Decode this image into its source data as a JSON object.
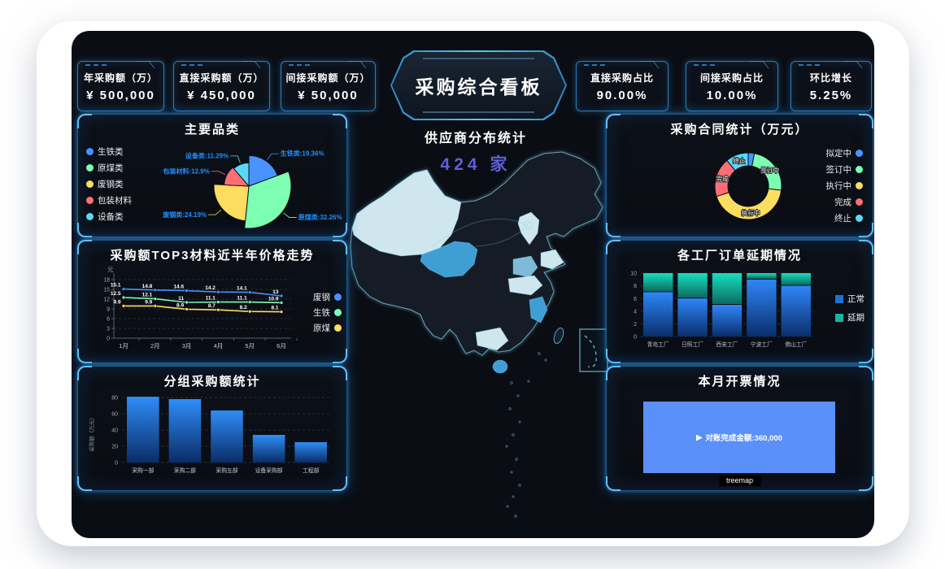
{
  "title": "采购综合看板",
  "top_cards": [
    {
      "label": "年采购额（万）",
      "value": "¥ 500,000"
    },
    {
      "label": "直接采购额（万）",
      "value": "¥ 450,000"
    },
    {
      "label": "间接采购额（万）",
      "value": "¥ 50,000"
    },
    {
      "label": "直接采购占比",
      "value": "90.00%"
    },
    {
      "label": "间接采购占比",
      "value": "10.00%"
    },
    {
      "label": "环比增长",
      "value": "5.25%"
    }
  ],
  "center": {
    "supplier_title": "供应商分布统计",
    "supplier_count": "424",
    "supplier_unit": "家"
  },
  "colors": {
    "accent_purple": "#5f5fd8",
    "panel_glow_blue": "#2482dc",
    "pie_label_blue": "#1e90ff",
    "map_light": "#cfe6ee",
    "map_mid": "#7fb9d8",
    "map_strong": "#3f9fd4",
    "treemap_blue": "#5b8ff9"
  },
  "chart_data": [
    {
      "id": "categories_pie",
      "type": "pie",
      "variant": "rose",
      "title": "主要品类",
      "legend_position": "left",
      "label_color": "#1e90ff",
      "series": [
        {
          "name": "生铁类",
          "value": 19.36,
          "color": "#4992ff"
        },
        {
          "name": "原煤类",
          "value": 32.26,
          "color": "#7cffb2"
        },
        {
          "name": "废钢类",
          "value": 24.19,
          "color": "#fddd60"
        },
        {
          "name": "包装材料",
          "value": 12.9,
          "color": "#ff6e76"
        },
        {
          "name": "设备类",
          "value": 11.29,
          "color": "#58d9f9"
        }
      ]
    },
    {
      "id": "price_trend",
      "type": "line",
      "title": "采购额TOP3材料近半年价格走势",
      "ylabel": "元",
      "ylim": [
        0,
        18
      ],
      "yticks": [
        0,
        3,
        6,
        9,
        12,
        15,
        18
      ],
      "categories": [
        "1月",
        "2月",
        "3月",
        "4月",
        "5月",
        "6月"
      ],
      "legend_position": "right",
      "series": [
        {
          "name": "废钢",
          "color": "#4992ff",
          "values": [
            15.1,
            14.8,
            14.6,
            14.2,
            14.1,
            13
          ]
        },
        {
          "name": "生铁",
          "color": "#7cffb2",
          "values": [
            12.5,
            12.1,
            11,
            11.1,
            11.1,
            10.9
          ]
        },
        {
          "name": "原煤",
          "color": "#fddd60",
          "values": [
            9.9,
            9.9,
            8.9,
            8.7,
            8.2,
            8.1
          ]
        }
      ]
    },
    {
      "id": "group_purchase",
      "type": "bar",
      "title": "分组采购额统计",
      "ylabel": "采购额（万元）",
      "ylim": [
        0,
        80
      ],
      "yticks": [
        0,
        20,
        40,
        60,
        80
      ],
      "categories": [
        "采购一部",
        "采购二部",
        "采购五部",
        "设备采购部",
        "工程部"
      ],
      "values": [
        81,
        78,
        64,
        34,
        25
      ],
      "bar_gradient": [
        "#2f8df8",
        "#0a2c66"
      ]
    },
    {
      "id": "contract_donut",
      "type": "pie",
      "variant": "donut",
      "title": "采购合同统计（万元）",
      "legend_position": "right",
      "values_note": "percent shares estimated from arc sizes; no numeric labels shown",
      "series": [
        {
          "name": "拟定中",
          "value": 3,
          "color": "#4992ff"
        },
        {
          "name": "签订中",
          "value": 24,
          "color": "#7cffb2"
        },
        {
          "name": "执行中",
          "value": 43,
          "color": "#fddd60"
        },
        {
          "name": "完成",
          "value": 19,
          "color": "#ff6e76"
        },
        {
          "name": "终止",
          "value": 11,
          "color": "#58d9f9"
        }
      ]
    },
    {
      "id": "factory_delay",
      "type": "bar",
      "variant": "stacked",
      "title": "各工厂订单延期情况",
      "ylim": [
        0,
        10
      ],
      "yticks": [
        0,
        2,
        4,
        6,
        8,
        10
      ],
      "categories": [
        "青岛工厂",
        "日照工厂",
        "西安工厂",
        "宁波工厂",
        "佛山工厂"
      ],
      "legend_position": "right",
      "series": [
        {
          "name": "正常",
          "values": [
            7,
            6,
            5,
            9,
            8
          ],
          "gradient": [
            "#2f86f8",
            "#0a2e6b"
          ],
          "legend_color": "#1f6fd4"
        },
        {
          "name": "延期",
          "values": [
            3,
            4,
            5,
            1,
            2
          ],
          "gradient": [
            "#17e0be",
            "#0c6a60"
          ],
          "legend_color": "#18b3a2"
        }
      ]
    },
    {
      "id": "invoice_treemap",
      "type": "treemap",
      "title": "本月开票情况",
      "arrow_icon": "▶",
      "blocks": [
        {
          "label": "对账完成金额:360,000",
          "color": "#5b8ff9"
        }
      ],
      "footer_label": "treemap"
    },
    {
      "id": "supplier_map",
      "type": "map",
      "region": "China",
      "highlight_light": [
        "新疆",
        "北京",
        "河北",
        "山东",
        "湖北",
        "广西"
      ],
      "highlight_mid": [
        "河南"
      ],
      "highlight_strong": [
        "青海",
        "江西",
        "海南"
      ]
    }
  ]
}
